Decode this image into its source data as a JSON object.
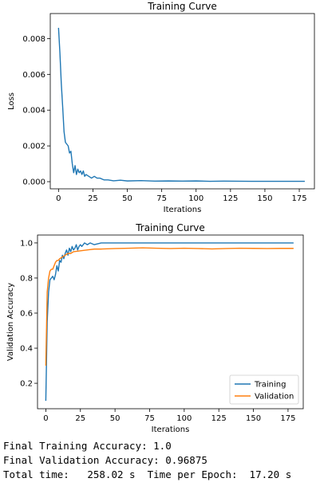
{
  "colors": {
    "training": "#1f77b4",
    "validation": "#ff7f0e"
  },
  "chart_data": [
    {
      "type": "line",
      "title": "Training Curve",
      "xlabel": "Iterations",
      "ylabel": "Loss",
      "xlim": [
        -6,
        186
      ],
      "ylim": [
        -0.0004,
        0.0094
      ],
      "xticks": [
        0,
        25,
        50,
        75,
        100,
        125,
        150,
        175
      ],
      "yticks": [
        0.0,
        0.002,
        0.004,
        0.006,
        0.008
      ],
      "ytick_labels": [
        "0.000",
        "0.002",
        "0.004",
        "0.006",
        "0.008"
      ],
      "grid": false,
      "series": [
        {
          "points": [
            [
              0,
              0.0086
            ],
            [
              1,
              0.0072
            ],
            [
              2,
              0.0055
            ],
            [
              3,
              0.0042
            ],
            [
              4,
              0.0028
            ],
            [
              5,
              0.0022
            ],
            [
              6,
              0.0021
            ],
            [
              7,
              0.002
            ],
            [
              8,
              0.0016
            ],
            [
              9,
              0.0017
            ],
            [
              10,
              0.001
            ],
            [
              11,
              0.0005
            ],
            [
              12,
              0.0009
            ],
            [
              13,
              0.0004
            ],
            [
              14,
              0.0007
            ],
            [
              15,
              0.0005
            ],
            [
              16,
              0.0006
            ],
            [
              17,
              0.0004
            ],
            [
              18,
              0.0006
            ],
            [
              19,
              0.0003
            ],
            [
              20,
              0.0004
            ],
            [
              22,
              0.0003
            ],
            [
              24,
              0.0002
            ],
            [
              26,
              0.0003
            ],
            [
              28,
              0.0002
            ],
            [
              30,
              0.0002
            ],
            [
              33,
              0.0001
            ],
            [
              36,
              0.0001
            ],
            [
              40,
              5e-05
            ],
            [
              45,
              8e-05
            ],
            [
              50,
              4e-05
            ],
            [
              60,
              6e-05
            ],
            [
              70,
              3e-05
            ],
            [
              80,
              4e-05
            ],
            [
              90,
              3e-05
            ],
            [
              100,
              4e-05
            ],
            [
              110,
              2e-05
            ],
            [
              120,
              3e-05
            ],
            [
              140,
              2e-05
            ],
            [
              160,
              2e-05
            ],
            [
              179,
              2e-05
            ]
          ]
        }
      ]
    },
    {
      "type": "line",
      "title": "Training Curve",
      "xlabel": "Iterations",
      "ylabel": "Validation Accuracy",
      "xlim": [
        -6,
        186
      ],
      "ylim": [
        0.055,
        1.045
      ],
      "xticks": [
        0,
        25,
        50,
        75,
        100,
        125,
        150,
        175
      ],
      "yticks": [
        0.2,
        0.4,
        0.6,
        0.8,
        1.0
      ],
      "ytick_labels": [
        "0.2",
        "0.4",
        "0.6",
        "0.8",
        "1.0"
      ],
      "grid": false,
      "legend": "bottom-right",
      "series": [
        {
          "name": "Training",
          "points": [
            [
              0,
              0.1
            ],
            [
              1,
              0.55
            ],
            [
              2,
              0.72
            ],
            [
              3,
              0.79
            ],
            [
              4,
              0.8
            ],
            [
              5,
              0.81
            ],
            [
              6,
              0.79
            ],
            [
              7,
              0.82
            ],
            [
              8,
              0.87
            ],
            [
              9,
              0.84
            ],
            [
              10,
              0.9
            ],
            [
              11,
              0.89
            ],
            [
              12,
              0.93
            ],
            [
              13,
              0.91
            ],
            [
              14,
              0.94
            ],
            [
              15,
              0.96
            ],
            [
              16,
              0.93
            ],
            [
              17,
              0.97
            ],
            [
              18,
              0.95
            ],
            [
              19,
              0.98
            ],
            [
              20,
              0.96
            ],
            [
              21,
              0.97
            ],
            [
              22,
              0.99
            ],
            [
              23,
              0.96
            ],
            [
              24,
              0.98
            ],
            [
              25,
              0.99
            ],
            [
              26,
              0.98
            ],
            [
              27,
              0.99
            ],
            [
              28,
              1.0
            ],
            [
              30,
              0.99
            ],
            [
              32,
              1.0
            ],
            [
              35,
              0.99
            ],
            [
              40,
              1.0
            ],
            [
              60,
              1.0
            ],
            [
              100,
              1.0
            ],
            [
              140,
              1.0
            ],
            [
              179,
              1.0
            ]
          ]
        },
        {
          "name": "Validation",
          "points": [
            [
              0,
              0.3
            ],
            [
              1,
              0.72
            ],
            [
              2,
              0.8
            ],
            [
              3,
              0.84
            ],
            [
              4,
              0.85
            ],
            [
              5,
              0.85
            ],
            [
              6,
              0.87
            ],
            [
              7,
              0.89
            ],
            [
              8,
              0.9
            ],
            [
              9,
              0.9
            ],
            [
              10,
              0.91
            ],
            [
              12,
              0.92
            ],
            [
              14,
              0.93
            ],
            [
              16,
              0.94
            ],
            [
              18,
              0.94
            ],
            [
              20,
              0.95
            ],
            [
              25,
              0.955
            ],
            [
              30,
              0.96
            ],
            [
              35,
              0.965
            ],
            [
              40,
              0.965
            ],
            [
              50,
              0.968
            ],
            [
              60,
              0.97
            ],
            [
              70,
              0.972
            ],
            [
              80,
              0.97
            ],
            [
              90,
              0.968
            ],
            [
              100,
              0.97
            ],
            [
              110,
              0.968
            ],
            [
              120,
              0.966
            ],
            [
              130,
              0.968
            ],
            [
              140,
              0.97
            ],
            [
              150,
              0.969
            ],
            [
              160,
              0.968
            ],
            [
              170,
              0.969
            ],
            [
              179,
              0.969
            ]
          ]
        }
      ]
    }
  ],
  "output": {
    "line1": "Final Training Accuracy: 1.0",
    "line2": "Final Validation Accuracy: 0.96875",
    "line3": "Total time:   258.02 s  Time per Epoch:  17.20 s"
  }
}
